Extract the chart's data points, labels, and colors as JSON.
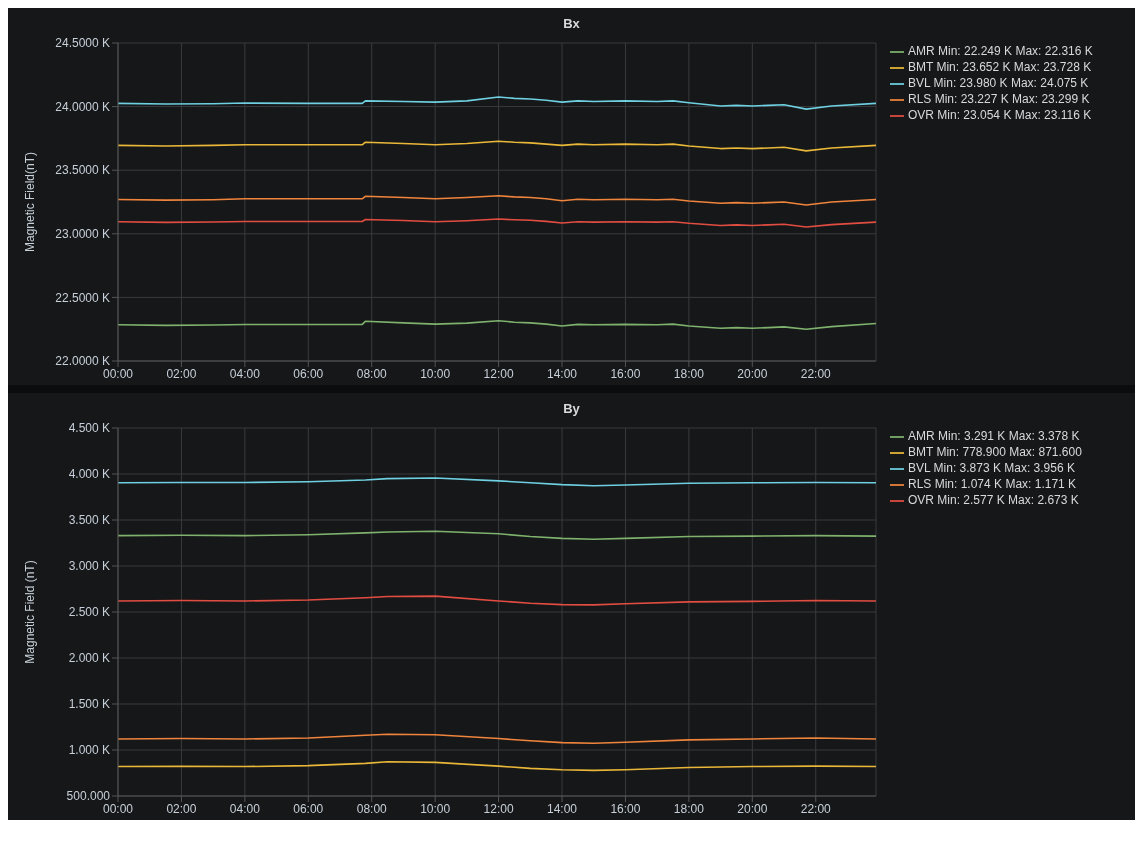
{
  "chart_data": [
    {
      "type": "line",
      "title": "Bx",
      "ylabel": "Magnetic Field(nT)",
      "xlim": [
        0,
        23.9
      ],
      "xticks": [
        {
          "value": 0,
          "label": "00:00"
        },
        {
          "value": 2,
          "label": "02:00"
        },
        {
          "value": 4,
          "label": "04:00"
        },
        {
          "value": 6,
          "label": "06:00"
        },
        {
          "value": 8,
          "label": "08:00"
        },
        {
          "value": 10,
          "label": "10:00"
        },
        {
          "value": 12,
          "label": "12:00"
        },
        {
          "value": 14,
          "label": "14:00"
        },
        {
          "value": 16,
          "label": "16:00"
        },
        {
          "value": 18,
          "label": "18:00"
        },
        {
          "value": 20,
          "label": "20:00"
        },
        {
          "value": 22,
          "label": "22:00"
        }
      ],
      "ylim": [
        22000,
        24500
      ],
      "yticks": [
        {
          "value": 22000,
          "label": "22.0000 K"
        },
        {
          "value": 22500,
          "label": "22.5000 K"
        },
        {
          "value": 23000,
          "label": "23.0000 K"
        },
        {
          "value": 23500,
          "label": "23.5000 K"
        },
        {
          "value": 24000,
          "label": "24.0000 K"
        },
        {
          "value": 24500,
          "label": "24.5000 K"
        }
      ],
      "grid": true,
      "legend": "right",
      "marker": "none",
      "line_style": "solid",
      "x": [
        0,
        1.5,
        3,
        4,
        6,
        7.7,
        7.8,
        9,
        10,
        11,
        12,
        12.5,
        13,
        13.5,
        14,
        14.5,
        15,
        16,
        17,
        17.5,
        18,
        19,
        19.5,
        20,
        20.5,
        21,
        21.7,
        22.5,
        23.9
      ],
      "series": [
        {
          "name": "AMR  Min: 22.249 K  Max: 22.316 K",
          "color": "#7eb26d",
          "values": [
            22285,
            22280,
            22283,
            22287,
            22287,
            22288,
            22312,
            22300,
            22290,
            22298,
            22316,
            22305,
            22300,
            22290,
            22275,
            22288,
            22285,
            22288,
            22285,
            22290,
            22275,
            22258,
            22262,
            22258,
            22262,
            22268,
            22249,
            22270,
            22295
          ]
        },
        {
          "name": "BMT  Min: 23.652 K  Max: 23.728 K",
          "color": "#eab839",
          "values": [
            23695,
            23690,
            23695,
            23700,
            23700,
            23700,
            23720,
            23710,
            23700,
            23710,
            23728,
            23720,
            23715,
            23705,
            23695,
            23705,
            23700,
            23705,
            23700,
            23705,
            23690,
            23670,
            23675,
            23670,
            23675,
            23680,
            23652,
            23675,
            23695
          ]
        },
        {
          "name": "BVL  Min: 23.980 K  Max: 24.075 K",
          "color": "#6ed0e0",
          "values": [
            24025,
            24020,
            24022,
            24028,
            24025,
            24025,
            24045,
            24040,
            24035,
            24045,
            24075,
            24065,
            24060,
            24050,
            24035,
            24045,
            24040,
            24045,
            24040,
            24045,
            24030,
            24005,
            24010,
            24005,
            24010,
            24015,
            23980,
            24005,
            24025
          ]
        },
        {
          "name": "RLS  Min: 23.227 K  Max: 23.299 K",
          "color": "#ef843c",
          "values": [
            23270,
            23265,
            23268,
            23275,
            23275,
            23275,
            23295,
            23285,
            23275,
            23285,
            23299,
            23290,
            23285,
            23275,
            23260,
            23272,
            23268,
            23272,
            23268,
            23272,
            23258,
            23240,
            23245,
            23240,
            23245,
            23250,
            23227,
            23250,
            23270
          ]
        },
        {
          "name": "OVR  Min: 23.054 K  Max: 23.116 K",
          "color": "#e24d42",
          "values": [
            23095,
            23090,
            23093,
            23097,
            23097,
            23097,
            23112,
            23105,
            23095,
            23103,
            23116,
            23110,
            23106,
            23098,
            23085,
            23095,
            23092,
            23095,
            23092,
            23095,
            23083,
            23065,
            23070,
            23065,
            23070,
            23075,
            23054,
            23072,
            23092
          ]
        }
      ]
    },
    {
      "type": "line",
      "title": "By",
      "ylabel": "Magnetic Field (nT)",
      "xlim": [
        0,
        23.9
      ],
      "xticks": [
        {
          "value": 0,
          "label": "00:00"
        },
        {
          "value": 2,
          "label": "02:00"
        },
        {
          "value": 4,
          "label": "04:00"
        },
        {
          "value": 6,
          "label": "06:00"
        },
        {
          "value": 8,
          "label": "08:00"
        },
        {
          "value": 10,
          "label": "10:00"
        },
        {
          "value": 12,
          "label": "12:00"
        },
        {
          "value": 14,
          "label": "14:00"
        },
        {
          "value": 16,
          "label": "16:00"
        },
        {
          "value": 18,
          "label": "18:00"
        },
        {
          "value": 20,
          "label": "20:00"
        },
        {
          "value": 22,
          "label": "22:00"
        }
      ],
      "ylim": [
        500,
        4500
      ],
      "yticks": [
        {
          "value": 500,
          "label": "500.000"
        },
        {
          "value": 1000,
          "label": "1.000 K"
        },
        {
          "value": 1500,
          "label": "1.500 K"
        },
        {
          "value": 2000,
          "label": "2.000 K"
        },
        {
          "value": 2500,
          "label": "2.500 K"
        },
        {
          "value": 3000,
          "label": "3.000 K"
        },
        {
          "value": 3500,
          "label": "3.500 K"
        },
        {
          "value": 4000,
          "label": "4.000 K"
        },
        {
          "value": 4500,
          "label": "4.500 K"
        }
      ],
      "grid": true,
      "legend": "right",
      "marker": "none",
      "line_style": "solid",
      "x": [
        0,
        2,
        4,
        6,
        7.8,
        8.5,
        10,
        12,
        13,
        14,
        15,
        16,
        18,
        20,
        22,
        23.9
      ],
      "series": [
        {
          "name": "AMR  Min: 3.291 K  Max: 3.378 K",
          "color": "#7eb26d",
          "values": [
            3330,
            3335,
            3330,
            3340,
            3360,
            3370,
            3378,
            3350,
            3320,
            3300,
            3291,
            3300,
            3320,
            3325,
            3330,
            3325
          ]
        },
        {
          "name": "BMT  Min: 778.900  Max: 871.600",
          "color": "#eab839",
          "values": [
            820,
            822,
            820,
            830,
            855,
            871.6,
            865,
            825,
            800,
            785,
            778.9,
            785,
            810,
            820,
            825,
            820
          ]
        },
        {
          "name": "BVL  Min: 3.873 K  Max: 3.956 K",
          "color": "#6ed0e0",
          "values": [
            3905,
            3908,
            3908,
            3915,
            3935,
            3950,
            3956,
            3925,
            3905,
            3885,
            3873,
            3880,
            3900,
            3905,
            3908,
            3905
          ]
        },
        {
          "name": "RLS  Min: 1.074 K  Max: 1.171 K",
          "color": "#ef843c",
          "values": [
            1120,
            1125,
            1120,
            1130,
            1160,
            1171,
            1165,
            1125,
            1100,
            1080,
            1074,
            1085,
            1110,
            1120,
            1130,
            1120
          ]
        },
        {
          "name": "OVR  Min: 2.577 K  Max: 2.673 K",
          "color": "#e24d42",
          "values": [
            2620,
            2625,
            2620,
            2630,
            2655,
            2668,
            2673,
            2620,
            2595,
            2580,
            2577,
            2590,
            2610,
            2615,
            2625,
            2620
          ]
        }
      ]
    }
  ]
}
